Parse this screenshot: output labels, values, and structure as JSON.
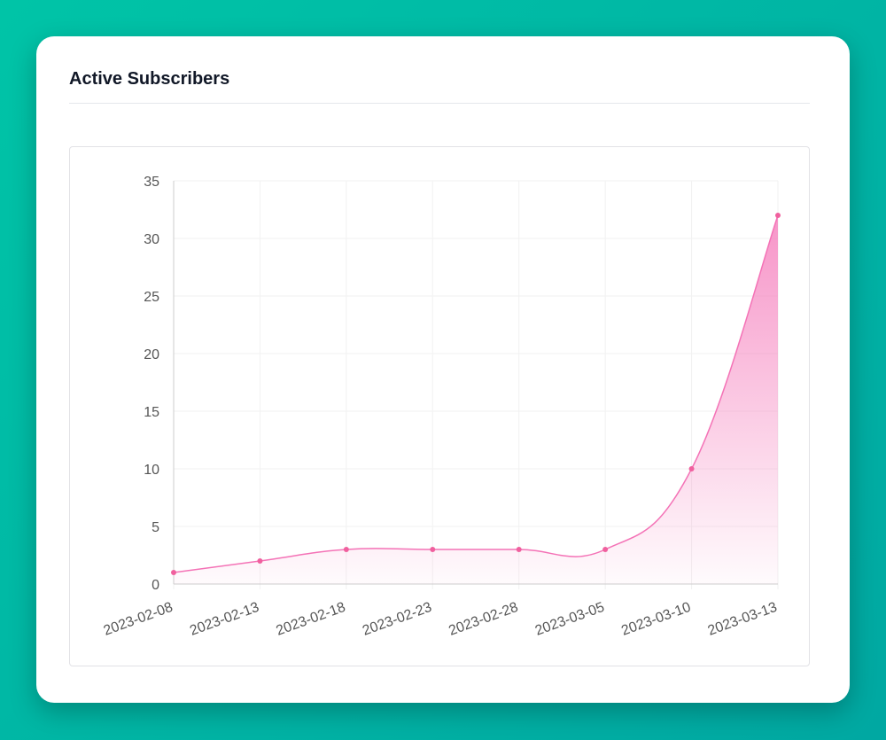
{
  "card": {
    "title": "Active Subscribers"
  },
  "colors": {
    "line": "#f472b6",
    "point": "#f0609e",
    "fill_top": "#f472b6",
    "grid": "#f2f2f2",
    "axis": "#cccccc"
  },
  "chart_data": {
    "type": "area",
    "title": "Active Subscribers",
    "xlabel": "",
    "ylabel": "",
    "categories": [
      "2023-02-08",
      "2023-02-13",
      "2023-02-18",
      "2023-02-23",
      "2023-02-28",
      "2023-03-05",
      "2023-03-10",
      "2023-03-13"
    ],
    "series": [
      {
        "name": "Active Subscribers",
        "values": [
          1,
          2,
          3,
          3,
          3,
          3,
          10,
          32
        ]
      }
    ],
    "ylim": [
      0,
      35
    ],
    "yticks": [
      0,
      5,
      10,
      15,
      20,
      25,
      30,
      35
    ],
    "grid": true,
    "legend": "none"
  }
}
